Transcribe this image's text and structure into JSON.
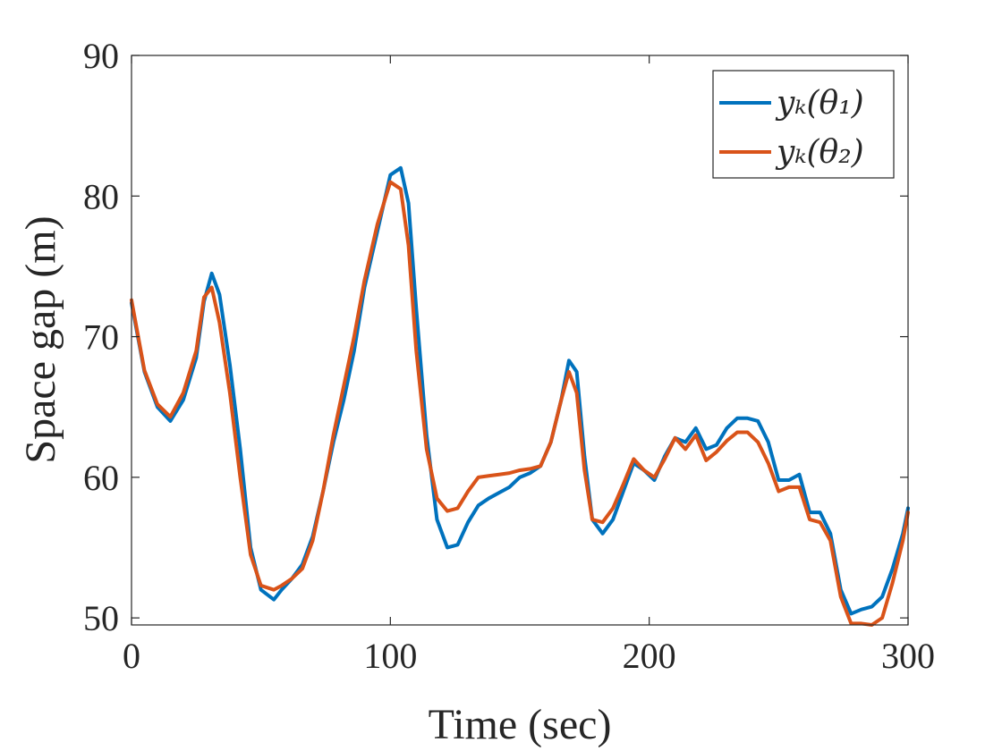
{
  "chart_data": {
    "type": "line",
    "xlabel": "Time (sec)",
    "ylabel": "Space gap (m)",
    "xlim": [
      0,
      300
    ],
    "ylim": [
      49.5,
      90
    ],
    "xticks": [
      0,
      100,
      200,
      300
    ],
    "yticks": [
      50,
      60,
      70,
      80,
      90
    ],
    "xtick_labels": [
      "0",
      "100",
      "200",
      "300"
    ],
    "ytick_labels": [
      "50",
      "60",
      "70",
      "80",
      "90"
    ],
    "grid": false,
    "legend_position": "top-right",
    "series": [
      {
        "name": "y_k(θ_1)",
        "legend_label": "yₖ(θ₁)",
        "color": "#0072BD",
        "x": [
          0,
          5,
          10,
          15,
          20,
          25,
          28,
          31,
          34,
          38,
          42,
          46,
          50,
          55,
          58,
          62,
          66,
          70,
          74,
          78,
          82,
          86,
          90,
          95,
          100,
          104,
          107,
          110,
          114,
          118,
          122,
          126,
          130,
          134,
          138,
          142,
          146,
          150,
          154,
          158,
          162,
          166,
          169,
          172,
          175,
          178,
          182,
          186,
          190,
          194,
          198,
          202,
          206,
          210,
          214,
          218,
          222,
          226,
          230,
          234,
          238,
          242,
          246,
          250,
          254,
          258,
          262,
          266,
          270,
          274,
          278,
          282,
          286,
          290,
          294,
          298,
          300
        ],
        "y": [
          72.4,
          67.5,
          65.0,
          64.0,
          65.5,
          68.5,
          72.5,
          74.5,
          73.0,
          68.0,
          62.0,
          55.0,
          52.0,
          51.3,
          52.0,
          52.8,
          53.8,
          55.8,
          59.0,
          62.5,
          65.5,
          69.0,
          73.5,
          77.5,
          81.5,
          82.0,
          79.5,
          72.0,
          63.0,
          57.0,
          55.0,
          55.2,
          56.8,
          58.0,
          58.5,
          58.9,
          59.3,
          60.0,
          60.3,
          60.8,
          62.5,
          65.5,
          68.3,
          67.5,
          61.5,
          57.0,
          56.0,
          57.0,
          59.0,
          61.0,
          60.5,
          59.8,
          61.5,
          62.8,
          62.5,
          63.5,
          62.0,
          62.3,
          63.5,
          64.2,
          64.2,
          64.0,
          62.5,
          59.8,
          59.8,
          60.2,
          57.5,
          57.5,
          56.0,
          52.0,
          50.3,
          50.6,
          50.8,
          51.5,
          53.5,
          56.0,
          57.8
        ]
      },
      {
        "name": "y_k(θ_2)",
        "legend_label": "yₖ(θ₂)",
        "color": "#D95319",
        "x": [
          0,
          5,
          10,
          15,
          20,
          25,
          28,
          31,
          34,
          38,
          42,
          46,
          50,
          55,
          58,
          62,
          66,
          70,
          74,
          78,
          82,
          86,
          90,
          95,
          100,
          104,
          107,
          110,
          114,
          118,
          122,
          126,
          130,
          134,
          138,
          142,
          146,
          150,
          154,
          158,
          162,
          166,
          169,
          172,
          175,
          178,
          182,
          186,
          190,
          194,
          198,
          202,
          206,
          210,
          214,
          218,
          222,
          226,
          230,
          234,
          238,
          242,
          246,
          250,
          254,
          258,
          262,
          266,
          270,
          274,
          278,
          282,
          286,
          290,
          294,
          298,
          300
        ],
        "y": [
          72.6,
          67.6,
          65.2,
          64.3,
          66.0,
          69.0,
          72.8,
          73.5,
          71.0,
          66.0,
          60.0,
          54.5,
          52.3,
          52.0,
          52.3,
          52.8,
          53.5,
          55.5,
          59.0,
          63.0,
          66.5,
          70.0,
          74.0,
          78.0,
          81.0,
          80.5,
          76.5,
          69.0,
          62.0,
          58.5,
          57.6,
          57.8,
          59.0,
          60.0,
          60.1,
          60.2,
          60.3,
          60.5,
          60.6,
          60.8,
          62.5,
          65.5,
          67.5,
          66.0,
          60.5,
          57.0,
          56.8,
          57.8,
          59.5,
          61.3,
          60.5,
          60.0,
          61.3,
          62.8,
          62.0,
          63.0,
          61.2,
          61.8,
          62.6,
          63.2,
          63.2,
          62.5,
          61.0,
          59.0,
          59.3,
          59.3,
          57.0,
          56.8,
          55.5,
          51.5,
          49.6,
          49.6,
          49.5,
          50.0,
          52.5,
          55.5,
          57.5
        ]
      }
    ]
  }
}
